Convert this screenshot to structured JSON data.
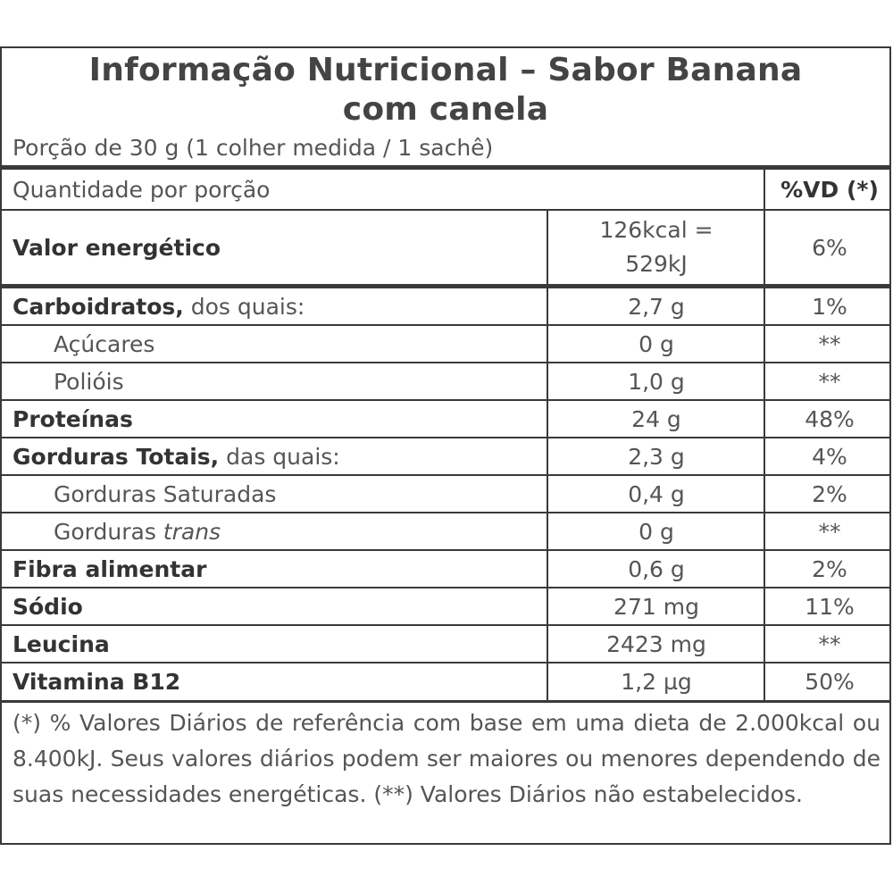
{
  "title_line1": "Informação Nutricional – Sabor Banana",
  "title_line2": "com canela",
  "serving": "Porção de 30 g (1 colher medida / 1 sachê)",
  "header": {
    "quantity_label": "Quantidade por porção",
    "vd_label": "%VD (*)"
  },
  "energy": {
    "label": "Valor energético",
    "amount_line1": "126kcal =",
    "amount_line2": "529kJ",
    "vd": "6%"
  },
  "rows": [
    {
      "label_bold": "Carboidratos,",
      "label_rest": " dos quais:",
      "amount": "2,7 g",
      "vd": "1%"
    },
    {
      "label_rest": "Açúcares",
      "indent": true,
      "amount": "0 g",
      "vd": "**"
    },
    {
      "label_rest": "Polióis",
      "indent": true,
      "amount": "1,0 g",
      "vd": "**"
    },
    {
      "label_bold": "Proteínas",
      "amount": "24 g",
      "vd": "48%"
    },
    {
      "label_bold": "Gorduras Totais,",
      "label_rest": " das quais:",
      "amount": "2,3 g",
      "vd": "4%"
    },
    {
      "label_rest": "Gorduras Saturadas",
      "indent": true,
      "amount": "0,4 g",
      "vd": "2%"
    },
    {
      "label_rest": "Gorduras ",
      "label_italic": "trans",
      "indent": true,
      "amount": "0 g",
      "vd": "**"
    },
    {
      "label_bold": "Fibra alimentar",
      "amount": "0,6 g",
      "vd": "2%"
    },
    {
      "label_bold": "Sódio",
      "amount": "271 mg",
      "vd": "11%"
    },
    {
      "label_bold": "Leucina",
      "amount": "2423 mg",
      "vd": "**"
    },
    {
      "label_bold": "Vitamina B12",
      "amount": "1,2 µg",
      "vd": "50%"
    }
  ],
  "footer": "(*) % Valores Diários de referência com base em uma dieta de 2.000kcal ou 8.400kJ. Seus valores diários podem ser maiores ou menores dependendo de suas necessidades energéticas. (**) Valores Diários não estabelecidos."
}
